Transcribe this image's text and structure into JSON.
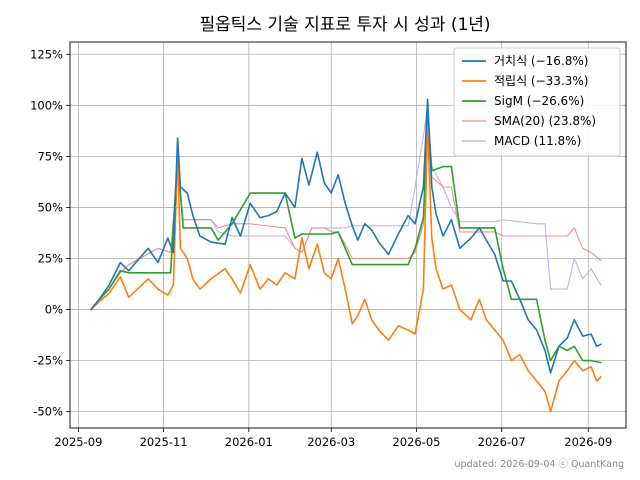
{
  "chart_data": {
    "type": "line",
    "title": "필옵틱스 기술 지표로 투자 시 성과 (1년)",
    "xlabel": "",
    "ylabel": "",
    "x_ticks": [
      "2025-09",
      "2025-11",
      "2026-01",
      "2026-03",
      "2026-05",
      "2026-07",
      "2026-09"
    ],
    "y_ticks": [
      "-50%",
      "-25%",
      "0%",
      "25%",
      "50%",
      "75%",
      "100%",
      "125%"
    ],
    "x_range": [
      "2025-08-26",
      "2026-09-28"
    ],
    "ylim": [
      -58,
      131
    ],
    "grid": true,
    "legend_position": "top-right",
    "footer": "updated: 2026-09-04 ⓒ QuantKang",
    "series": [
      {
        "name": "거치식 (−16.8%)",
        "color": "#1f77b4",
        "points": [
          [
            "2025-09-10",
            0
          ],
          [
            "2025-09-16",
            5
          ],
          [
            "2025-09-23",
            12
          ],
          [
            "2025-10-01",
            23
          ],
          [
            "2025-10-07",
            19
          ],
          [
            "2025-10-21",
            30
          ],
          [
            "2025-10-28",
            23
          ],
          [
            "2025-11-04",
            35
          ],
          [
            "2025-11-08",
            28
          ],
          [
            "2025-11-11",
            84
          ],
          [
            "2025-11-13",
            60
          ],
          [
            "2025-11-18",
            57
          ],
          [
            "2025-11-22",
            46
          ],
          [
            "2025-11-27",
            36
          ],
          [
            "2025-12-05",
            33
          ],
          [
            "2025-12-15",
            32
          ],
          [
            "2025-12-20",
            45
          ],
          [
            "2025-12-26",
            36
          ],
          [
            "2026-01-02",
            52
          ],
          [
            "2026-01-09",
            45
          ],
          [
            "2026-01-15",
            46
          ],
          [
            "2026-01-21",
            48
          ],
          [
            "2026-01-27",
            57
          ],
          [
            "2026-02-03",
            50
          ],
          [
            "2026-02-08",
            74
          ],
          [
            "2026-02-13",
            61
          ],
          [
            "2026-02-19",
            77
          ],
          [
            "2026-02-24",
            62
          ],
          [
            "2026-03-01",
            57
          ],
          [
            "2026-03-06",
            66
          ],
          [
            "2026-03-11",
            52
          ],
          [
            "2026-03-16",
            41
          ],
          [
            "2026-03-20",
            34
          ],
          [
            "2026-03-25",
            42
          ],
          [
            "2026-03-30",
            39
          ],
          [
            "2026-04-04",
            33
          ],
          [
            "2026-04-11",
            27
          ],
          [
            "2026-04-18",
            37
          ],
          [
            "2026-04-25",
            46
          ],
          [
            "2026-04-30",
            42
          ],
          [
            "2026-05-06",
            60
          ],
          [
            "2026-05-09",
            103
          ],
          [
            "2026-05-12",
            60
          ],
          [
            "2026-05-15",
            47
          ],
          [
            "2026-05-20",
            36
          ],
          [
            "2026-05-26",
            44
          ],
          [
            "2026-06-01",
            30
          ],
          [
            "2026-06-09",
            35
          ],
          [
            "2026-06-15",
            40
          ],
          [
            "2026-06-20",
            34
          ],
          [
            "2026-06-26",
            27
          ],
          [
            "2026-07-02",
            14
          ],
          [
            "2026-07-08",
            14
          ],
          [
            "2026-07-14",
            5
          ],
          [
            "2026-07-20",
            -5
          ],
          [
            "2026-07-26",
            -10
          ],
          [
            "2026-08-01",
            -20
          ],
          [
            "2026-08-05",
            -31
          ],
          [
            "2026-08-11",
            -18
          ],
          [
            "2026-08-17",
            -14
          ],
          [
            "2026-08-22",
            -5
          ],
          [
            "2026-08-28",
            -13
          ],
          [
            "2026-09-03",
            -12
          ],
          [
            "2026-09-07",
            -18
          ],
          [
            "2026-09-10",
            -17
          ]
        ]
      },
      {
        "name": "적립식 (−33.3%)",
        "color": "#ff7f0e",
        "points": [
          [
            "2025-09-10",
            0
          ],
          [
            "2025-09-16",
            4
          ],
          [
            "2025-09-23",
            8
          ],
          [
            "2025-10-01",
            16
          ],
          [
            "2025-10-07",
            6
          ],
          [
            "2025-10-21",
            15
          ],
          [
            "2025-10-28",
            10
          ],
          [
            "2025-11-04",
            7
          ],
          [
            "2025-11-08",
            12
          ],
          [
            "2025-11-11",
            76
          ],
          [
            "2025-11-13",
            30
          ],
          [
            "2025-11-18",
            25
          ],
          [
            "2025-11-22",
            15
          ],
          [
            "2025-11-27",
            10
          ],
          [
            "2025-12-05",
            15
          ],
          [
            "2025-12-15",
            20
          ],
          [
            "2025-12-20",
            15
          ],
          [
            "2025-12-26",
            8
          ],
          [
            "2026-01-02",
            22
          ],
          [
            "2026-01-09",
            10
          ],
          [
            "2026-01-15",
            15
          ],
          [
            "2026-01-21",
            12
          ],
          [
            "2026-01-27",
            18
          ],
          [
            "2026-02-03",
            15
          ],
          [
            "2026-02-08",
            35
          ],
          [
            "2026-02-13",
            20
          ],
          [
            "2026-02-19",
            32
          ],
          [
            "2026-02-24",
            18
          ],
          [
            "2026-03-01",
            15
          ],
          [
            "2026-03-06",
            25
          ],
          [
            "2026-03-11",
            10
          ],
          [
            "2026-03-16",
            -7
          ],
          [
            "2026-03-20",
            -3
          ],
          [
            "2026-03-25",
            5
          ],
          [
            "2026-03-30",
            -5
          ],
          [
            "2026-04-04",
            -10
          ],
          [
            "2026-04-11",
            -15
          ],
          [
            "2026-04-18",
            -8
          ],
          [
            "2026-04-25",
            -10
          ],
          [
            "2026-04-30",
            -12
          ],
          [
            "2026-05-06",
            10
          ],
          [
            "2026-05-09",
            90
          ],
          [
            "2026-05-12",
            35
          ],
          [
            "2026-05-15",
            20
          ],
          [
            "2026-05-20",
            10
          ],
          [
            "2026-05-26",
            12
          ],
          [
            "2026-06-01",
            0
          ],
          [
            "2026-06-09",
            -5
          ],
          [
            "2026-06-15",
            5
          ],
          [
            "2026-06-20",
            -5
          ],
          [
            "2026-06-26",
            -10
          ],
          [
            "2026-07-02",
            -15
          ],
          [
            "2026-07-08",
            -25
          ],
          [
            "2026-07-14",
            -22
          ],
          [
            "2026-07-20",
            -30
          ],
          [
            "2026-07-26",
            -35
          ],
          [
            "2026-08-01",
            -40
          ],
          [
            "2026-08-05",
            -50
          ],
          [
            "2026-08-11",
            -35
          ],
          [
            "2026-08-17",
            -30
          ],
          [
            "2026-08-22",
            -25
          ],
          [
            "2026-08-28",
            -30
          ],
          [
            "2026-09-03",
            -28
          ],
          [
            "2026-09-07",
            -35
          ],
          [
            "2026-09-10",
            -33
          ]
        ]
      },
      {
        "name": "SigM (−26.6%)",
        "color": "#2ca02c",
        "points": [
          [
            "2025-09-10",
            0
          ],
          [
            "2025-09-16",
            5
          ],
          [
            "2025-09-23",
            10
          ],
          [
            "2025-10-01",
            19
          ],
          [
            "2025-10-07",
            18
          ],
          [
            "2025-10-28",
            18
          ],
          [
            "2025-11-06",
            18
          ],
          [
            "2025-11-11",
            75
          ],
          [
            "2025-11-15",
            40
          ],
          [
            "2025-12-05",
            40
          ],
          [
            "2025-12-10",
            34
          ],
          [
            "2025-12-20",
            42
          ],
          [
            "2026-01-02",
            57
          ],
          [
            "2026-01-27",
            57
          ],
          [
            "2026-02-03",
            35
          ],
          [
            "2026-02-08",
            37
          ],
          [
            "2026-03-01",
            37
          ],
          [
            "2026-03-06",
            38
          ],
          [
            "2026-03-11",
            30
          ],
          [
            "2026-03-16",
            22
          ],
          [
            "2026-04-25",
            22
          ],
          [
            "2026-04-30",
            30
          ],
          [
            "2026-05-06",
            45
          ],
          [
            "2026-05-09",
            95
          ],
          [
            "2026-05-12",
            68
          ],
          [
            "2026-05-20",
            70
          ],
          [
            "2026-05-26",
            70
          ],
          [
            "2026-06-01",
            40
          ],
          [
            "2026-06-26",
            40
          ],
          [
            "2026-07-02",
            20
          ],
          [
            "2026-07-08",
            5
          ],
          [
            "2026-07-26",
            5
          ],
          [
            "2026-08-01",
            -15
          ],
          [
            "2026-08-05",
            -25
          ],
          [
            "2026-08-11",
            -18
          ],
          [
            "2026-08-17",
            -20
          ],
          [
            "2026-08-22",
            -18
          ],
          [
            "2026-08-28",
            -25
          ],
          [
            "2026-09-03",
            -25
          ],
          [
            "2026-09-10",
            -26
          ]
        ]
      },
      {
        "name": "SMA(20) (23.8%)",
        "color": "#e8908c",
        "points": [
          [
            "2025-09-10",
            0
          ],
          [
            "2025-09-16",
            5
          ],
          [
            "2025-09-23",
            10
          ],
          [
            "2025-10-01",
            18
          ],
          [
            "2025-10-07",
            22
          ],
          [
            "2025-10-28",
            30
          ],
          [
            "2025-11-06",
            28
          ],
          [
            "2025-11-11",
            70
          ],
          [
            "2025-11-15",
            44
          ],
          [
            "2025-12-05",
            44
          ],
          [
            "2025-12-10",
            40
          ],
          [
            "2025-12-20",
            42
          ],
          [
            "2026-01-02",
            42
          ],
          [
            "2026-01-27",
            40
          ],
          [
            "2026-02-03",
            30
          ],
          [
            "2026-02-08",
            28
          ],
          [
            "2026-02-15",
            40
          ],
          [
            "2026-02-24",
            40
          ],
          [
            "2026-03-01",
            38
          ],
          [
            "2026-03-06",
            38
          ],
          [
            "2026-03-11",
            32
          ],
          [
            "2026-03-16",
            25
          ],
          [
            "2026-04-25",
            25
          ],
          [
            "2026-04-30",
            28
          ],
          [
            "2026-05-06",
            42
          ],
          [
            "2026-05-09",
            92
          ],
          [
            "2026-05-12",
            65
          ],
          [
            "2026-05-20",
            60
          ],
          [
            "2026-05-26",
            60
          ],
          [
            "2026-06-01",
            38
          ],
          [
            "2026-06-26",
            38
          ],
          [
            "2026-07-02",
            36
          ],
          [
            "2026-07-26",
            36
          ],
          [
            "2026-08-01",
            36
          ],
          [
            "2026-08-11",
            36
          ],
          [
            "2026-08-17",
            36
          ],
          [
            "2026-08-22",
            40
          ],
          [
            "2026-08-28",
            30
          ],
          [
            "2026-09-03",
            28
          ],
          [
            "2026-09-10",
            24
          ]
        ]
      },
      {
        "name": "MACD (11.8%)",
        "color": "#c5b0e8",
        "points": [
          [
            "2025-09-10",
            0
          ],
          [
            "2025-09-16",
            5
          ],
          [
            "2025-09-23",
            10
          ],
          [
            "2025-10-01",
            18
          ],
          [
            "2025-10-07",
            22
          ],
          [
            "2025-10-28",
            30
          ],
          [
            "2025-11-06",
            28
          ],
          [
            "2025-11-11",
            65
          ],
          [
            "2025-11-15",
            44
          ],
          [
            "2025-12-05",
            44
          ],
          [
            "2025-12-10",
            38
          ],
          [
            "2025-12-20",
            36
          ],
          [
            "2026-01-02",
            36
          ],
          [
            "2026-01-27",
            36
          ],
          [
            "2026-02-03",
            30
          ],
          [
            "2026-02-08",
            28
          ],
          [
            "2026-02-15",
            40
          ],
          [
            "2026-02-24",
            40
          ],
          [
            "2026-03-01",
            40
          ],
          [
            "2026-03-06",
            40
          ],
          [
            "2026-03-11",
            40
          ],
          [
            "2026-03-16",
            41
          ],
          [
            "2026-04-25",
            41
          ],
          [
            "2026-04-30",
            60
          ],
          [
            "2026-05-06",
            85
          ],
          [
            "2026-05-09",
            100
          ],
          [
            "2026-05-12",
            70
          ],
          [
            "2026-05-20",
            60
          ],
          [
            "2026-05-26",
            50
          ],
          [
            "2026-06-01",
            43
          ],
          [
            "2026-06-26",
            43
          ],
          [
            "2026-07-02",
            44
          ],
          [
            "2026-07-26",
            42
          ],
          [
            "2026-08-01",
            42
          ],
          [
            "2026-08-05",
            10
          ],
          [
            "2026-08-11",
            10
          ],
          [
            "2026-08-17",
            10
          ],
          [
            "2026-08-22",
            25
          ],
          [
            "2026-08-28",
            15
          ],
          [
            "2026-09-03",
            20
          ],
          [
            "2026-09-10",
            12
          ]
        ]
      }
    ]
  }
}
